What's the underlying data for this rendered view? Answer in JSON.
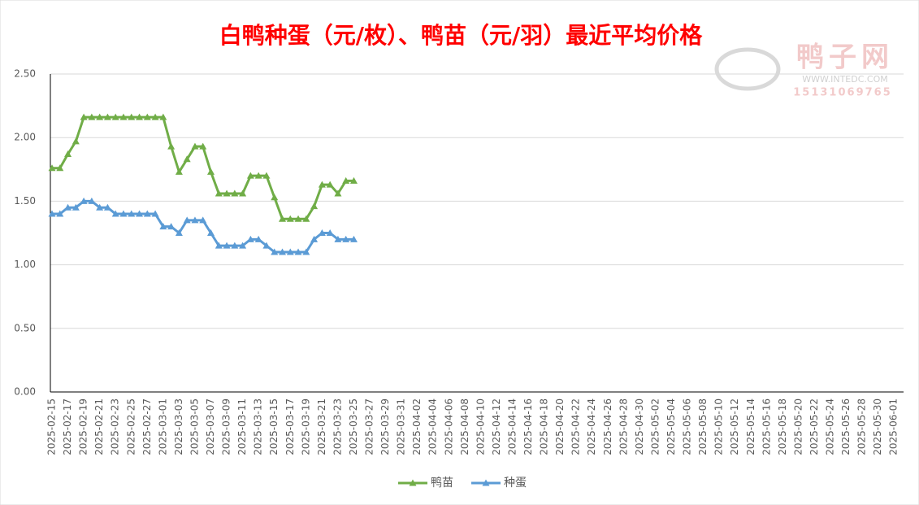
{
  "chart_data": {
    "type": "line",
    "title": "白鸭种蛋（元/枚）、鸭苗（元/羽）最近平均价格",
    "watermark": {
      "name": "鸭子网",
      "url": "WWW.INTEDC.COM",
      "phone": "15131069765"
    },
    "categories": [
      "2025-02-15",
      null,
      "2025-02-17",
      null,
      "2025-02-19",
      null,
      "2025-02-21",
      null,
      "2025-02-23",
      null,
      "2025-02-25",
      null,
      "2025-02-27",
      null,
      "2025-03-01",
      null,
      "2025-03-03",
      null,
      "2025-03-05",
      null,
      "2025-03-07",
      null,
      "2025-03-09",
      null,
      "2025-03-11",
      null,
      "2025-03-13",
      null,
      "2025-03-15",
      null,
      "2025-03-17",
      null,
      "2025-03-19",
      null,
      "2025-03-21",
      null,
      "2025-03-23",
      null,
      "2025-03-25",
      null,
      "2025-03-27",
      null,
      "2025-03-29",
      null,
      "2025-03-31",
      null,
      "2025-04-02",
      null,
      "2025-04-04",
      null,
      "2025-04-06",
      null,
      "2025-04-08",
      null,
      "2025-04-10",
      null,
      "2025-04-12",
      null,
      "2025-04-14",
      null,
      "2025-04-16",
      null,
      "2025-04-18",
      null,
      "2025-04-20",
      null,
      "2025-04-22",
      null,
      "2025-04-24",
      null,
      "2025-04-26",
      null,
      "2025-04-28",
      null,
      "2025-04-30",
      null,
      "2025-05-02",
      null,
      "2025-05-04",
      null,
      "2025-05-06",
      null,
      "2025-05-08",
      null,
      "2025-05-10",
      null,
      "2025-05-12",
      null,
      "2025-05-14",
      null,
      "2025-05-16",
      null,
      "2025-05-18",
      null,
      "2025-05-20",
      null,
      "2025-05-22",
      null,
      "2025-05-24",
      null,
      "2025-05-26",
      null,
      "2025-05-28",
      null,
      "2025-05-30",
      null,
      "2025-06-01",
      null
    ],
    "series": [
      {
        "name": "鸭苗",
        "color": "#70ad47",
        "values": [
          1.76,
          1.76,
          1.87,
          1.97,
          2.16,
          2.16,
          2.16,
          2.16,
          2.16,
          2.16,
          2.16,
          2.16,
          2.16,
          2.16,
          2.16,
          1.93,
          1.73,
          1.83,
          1.93,
          1.93,
          1.73,
          1.56,
          1.56,
          1.56,
          1.56,
          1.7,
          1.7,
          1.7,
          1.53,
          1.36,
          1.36,
          1.36,
          1.36,
          1.46,
          1.63,
          1.63,
          1.56,
          1.66,
          1.66,
          null,
          null,
          null,
          null,
          null,
          null,
          null,
          null,
          null,
          null,
          null,
          null,
          null,
          null,
          null,
          null,
          null,
          null,
          null,
          null,
          null,
          null,
          null,
          null,
          null,
          null,
          null,
          null,
          null,
          null,
          null,
          null,
          null,
          null,
          null,
          null,
          null,
          null,
          null,
          null,
          null,
          null,
          null,
          null,
          null,
          null,
          null,
          null,
          null,
          null,
          null,
          null,
          null,
          null,
          null,
          null,
          null,
          null,
          null,
          null,
          null,
          null,
          null,
          null,
          null,
          null,
          null,
          null,
          null
        ]
      },
      {
        "name": "种蛋",
        "color": "#5b9bd5",
        "values": [
          1.4,
          1.4,
          1.45,
          1.45,
          1.5,
          1.5,
          1.45,
          1.45,
          1.4,
          1.4,
          1.4,
          1.4,
          1.4,
          1.4,
          1.3,
          1.3,
          1.25,
          1.35,
          1.35,
          1.35,
          1.25,
          1.15,
          1.15,
          1.15,
          1.15,
          1.2,
          1.2,
          1.15,
          1.1,
          1.1,
          1.1,
          1.1,
          1.1,
          1.2,
          1.25,
          1.25,
          1.2,
          1.2,
          1.2,
          null,
          null,
          null,
          null,
          null,
          null,
          null,
          null,
          null,
          null,
          null,
          null,
          null,
          null,
          null,
          null,
          null,
          null,
          null,
          null,
          null,
          null,
          null,
          null,
          null,
          null,
          null,
          null,
          null,
          null,
          null,
          null,
          null,
          null,
          null,
          null,
          null,
          null,
          null,
          null,
          null,
          null,
          null,
          null,
          null,
          null,
          null,
          null,
          null,
          null,
          null,
          null,
          null,
          null,
          null,
          null,
          null,
          null,
          null,
          null,
          null,
          null,
          null,
          null,
          null,
          null,
          null,
          null,
          null
        ]
      }
    ],
    "ylim": [
      0,
      2.5
    ],
    "yticks": [
      {
        "value": 0,
        "label": "0.00"
      },
      {
        "value": 0.5,
        "label": "0.50"
      },
      {
        "value": 1,
        "label": "1.00"
      },
      {
        "value": 1.5,
        "label": "1.50"
      },
      {
        "value": 2,
        "label": "2.00"
      },
      {
        "value": 2.5,
        "label": "2.50"
      }
    ],
    "grid": true,
    "legend": "bottom"
  }
}
